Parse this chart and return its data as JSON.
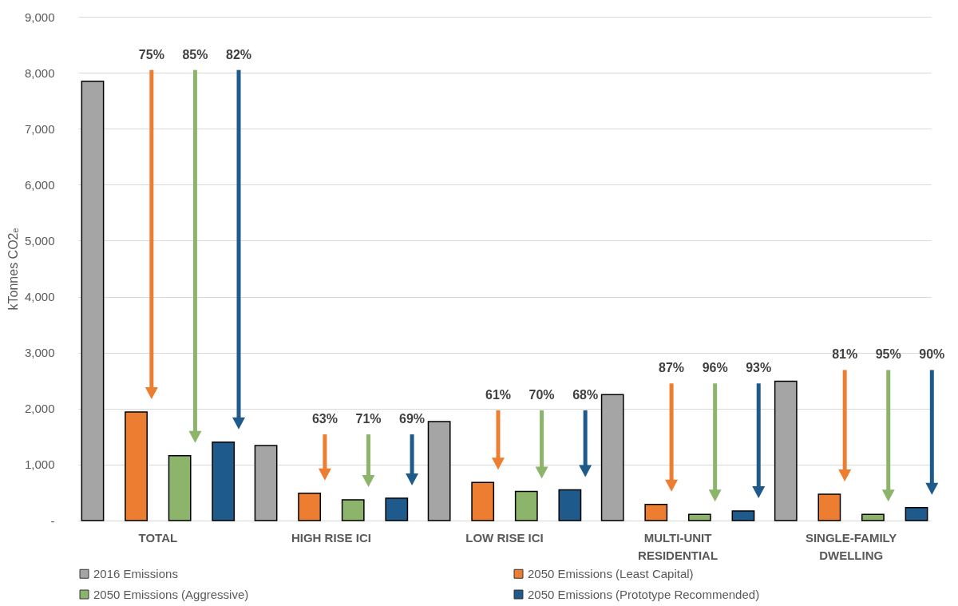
{
  "chart_data": {
    "type": "bar",
    "ylabel": "kTonnes CO2ₑ",
    "categories": [
      "TOTAL",
      "HIGH RISE ICI",
      "LOW RISE ICI",
      "MULTI-UNIT RESIDENTIAL",
      "SINGLE-FAMILY DWELLING"
    ],
    "series": [
      {
        "name": "2016 Emissions",
        "color": "#a5a5a5",
        "values": [
          7850,
          1340,
          1770,
          2250,
          2490
        ]
      },
      {
        "name": "2050 Emissions (Least Capital)",
        "color": "#ed7d31",
        "values": [
          1940,
          490,
          680,
          290,
          470
        ]
      },
      {
        "name": "2050 Emissions (Aggressive)",
        "color": "#8cb56b",
        "values": [
          1160,
          370,
          520,
          110,
          110
        ]
      },
      {
        "name": "2050 Emissions (Prototype Recommended)",
        "color": "#1f5a8c",
        "values": [
          1400,
          400,
          550,
          170,
          230
        ]
      }
    ],
    "ylim": [
      0,
      9000
    ],
    "yticks": [
      {
        "value": 0,
        "label": "-"
      },
      {
        "value": 1000,
        "label": "1,000"
      },
      {
        "value": 2000,
        "label": "2,000"
      },
      {
        "value": 3000,
        "label": "3,000"
      },
      {
        "value": 4000,
        "label": "4,000"
      },
      {
        "value": 5000,
        "label": "5,000"
      },
      {
        "value": 6000,
        "label": "6,000"
      },
      {
        "value": 7000,
        "label": "7,000"
      },
      {
        "value": 8000,
        "label": "8,000"
      },
      {
        "value": 9000,
        "label": "9,000"
      }
    ],
    "grid": "y",
    "legend": "bottom",
    "annotations": [
      "75%",
      "85%",
      "82%",
      "63%",
      "71%",
      "69%",
      "61%",
      "70%",
      "68%",
      "87%",
      "96%",
      "93%",
      "81%",
      "95%",
      "90%"
    ]
  }
}
